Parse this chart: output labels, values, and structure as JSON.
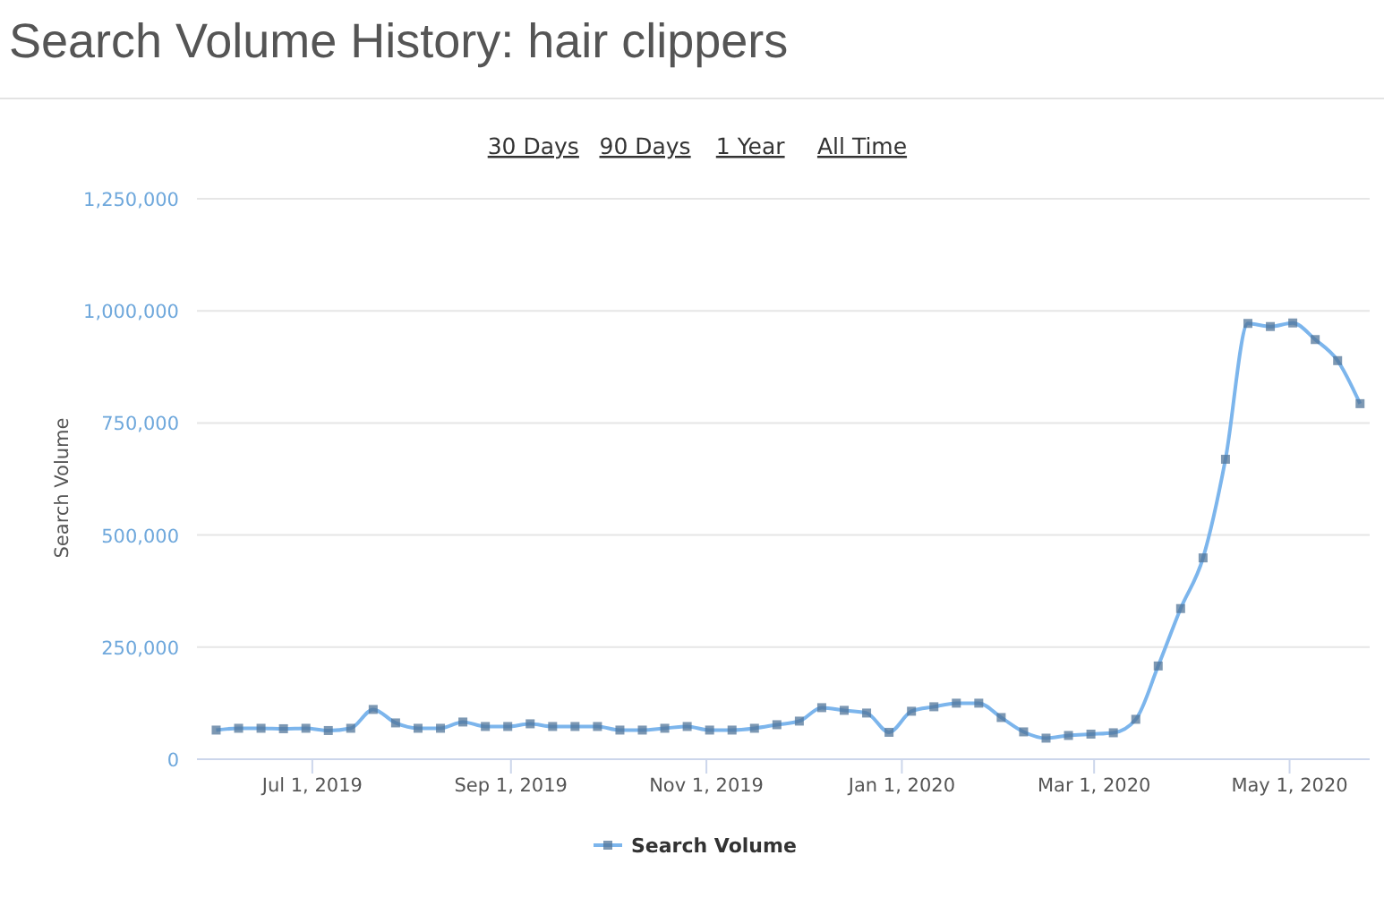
{
  "chart_data": {
    "type": "line",
    "title": "Search Volume History: hair clippers",
    "annotations": [
      "30 Days",
      "90 Days",
      "1 Year",
      "All Time"
    ],
    "ylabel": "Search Volume",
    "x": [
      "2019-06-01",
      "2019-06-08",
      "2019-06-15",
      "2019-06-22",
      "2019-06-29",
      "2019-07-06",
      "2019-07-13",
      "2019-07-20",
      "2019-07-27",
      "2019-08-03",
      "2019-08-10",
      "2019-08-17",
      "2019-08-24",
      "2019-08-31",
      "2019-09-07",
      "2019-09-14",
      "2019-09-21",
      "2019-09-28",
      "2019-10-05",
      "2019-10-12",
      "2019-10-19",
      "2019-10-26",
      "2019-11-02",
      "2019-11-09",
      "2019-11-16",
      "2019-11-23",
      "2019-11-30",
      "2019-12-07",
      "2019-12-14",
      "2019-12-21",
      "2019-12-28",
      "2020-01-04",
      "2020-01-11",
      "2020-01-18",
      "2020-01-25",
      "2020-02-01",
      "2020-02-08",
      "2020-02-15",
      "2020-02-22",
      "2020-02-29",
      "2020-03-07",
      "2020-03-14",
      "2020-03-21",
      "2020-03-28",
      "2020-04-04",
      "2020-04-11",
      "2020-04-18",
      "2020-04-25",
      "2020-05-02",
      "2020-05-09",
      "2020-05-16",
      "2020-05-23"
    ],
    "series": [
      {
        "name": "Search Volume",
        "color": "#7cb5ec",
        "values": [
          65000,
          69000,
          69000,
          68000,
          69000,
          64000,
          69000,
          111000,
          81000,
          69000,
          69000,
          83000,
          73000,
          73000,
          79000,
          73000,
          73000,
          73000,
          65000,
          65000,
          69000,
          73000,
          65000,
          65000,
          69000,
          77000,
          85000,
          115000,
          109000,
          103000,
          60000,
          107000,
          117000,
          125000,
          125000,
          93000,
          61000,
          47000,
          53000,
          56000,
          59000,
          89000,
          208000,
          336000,
          449000,
          669000,
          972000,
          965000,
          973000,
          936000,
          889000,
          793000
        ]
      }
    ],
    "xlim": [
      "2019-05-26",
      "2020-05-26"
    ],
    "xticks": [
      {
        "value": "2019-07-01",
        "label": "Jul 1, 2019"
      },
      {
        "value": "2019-09-01",
        "label": "Sep 1, 2019"
      },
      {
        "value": "2019-11-01",
        "label": "Nov 1, 2019"
      },
      {
        "value": "2020-01-01",
        "label": "Jan 1, 2020"
      },
      {
        "value": "2020-03-01",
        "label": "Mar 1, 2020"
      },
      {
        "value": "2020-05-01",
        "label": "May 1, 2020"
      }
    ],
    "ylim": [
      0,
      1250000
    ],
    "yticks": [
      {
        "value": 0,
        "label": "0"
      },
      {
        "value": 250000,
        "label": "250,000"
      },
      {
        "value": 500000,
        "label": "500,000"
      },
      {
        "value": 750000,
        "label": "750,000"
      },
      {
        "value": 1000000,
        "label": "1,000,000"
      },
      {
        "value": 1250000,
        "label": "1,250,000"
      }
    ],
    "grid": "y",
    "legend": "bottom",
    "marker": "square",
    "line_style": "solid"
  }
}
